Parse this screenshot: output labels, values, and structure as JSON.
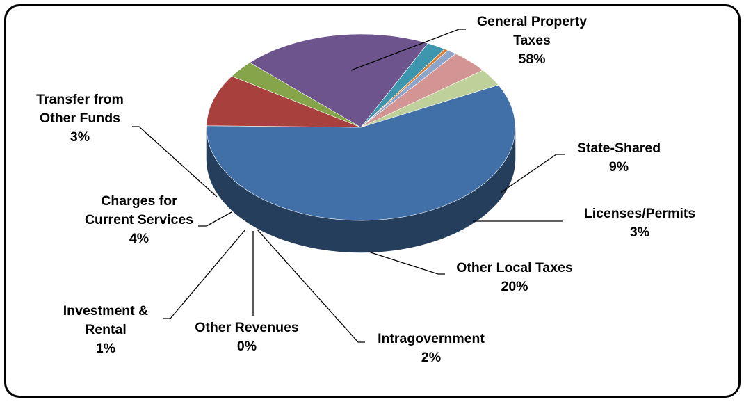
{
  "chart_data": {
    "type": "pie",
    "title": "",
    "slices": [
      {
        "label": [
          "General Property",
          "Taxes"
        ],
        "percent_label": "58%",
        "value": 58,
        "color": "#4170A8"
      },
      {
        "label": [
          "State-Shared"
        ],
        "percent_label": "9%",
        "value": 9,
        "color": "#A8403E"
      },
      {
        "label": [
          "Licenses/Permits"
        ],
        "percent_label": "3%",
        "value": 3,
        "color": "#86A44A"
      },
      {
        "label": [
          "Other Local Taxes"
        ],
        "percent_label": "20%",
        "value": 20,
        "color": "#6E548D"
      },
      {
        "label": [
          "Intragovernment"
        ],
        "percent_label": "2%",
        "value": 2,
        "color": "#3D96AE"
      },
      {
        "label": [
          "Other Revenues"
        ],
        "percent_label": "0%",
        "value": 0.4,
        "color": "#DA8137"
      },
      {
        "label": [
          "Investment &",
          "Rental"
        ],
        "percent_label": "1%",
        "value": 1,
        "color": "#8EA5CB"
      },
      {
        "label": [
          "Charges for",
          "Current Services"
        ],
        "percent_label": "4%",
        "value": 4,
        "color": "#D39593"
      },
      {
        "label": [
          "Transfer from",
          "Other Funds"
        ],
        "percent_label": "3%",
        "value": 3,
        "color": "#BFD19A"
      }
    ]
  }
}
